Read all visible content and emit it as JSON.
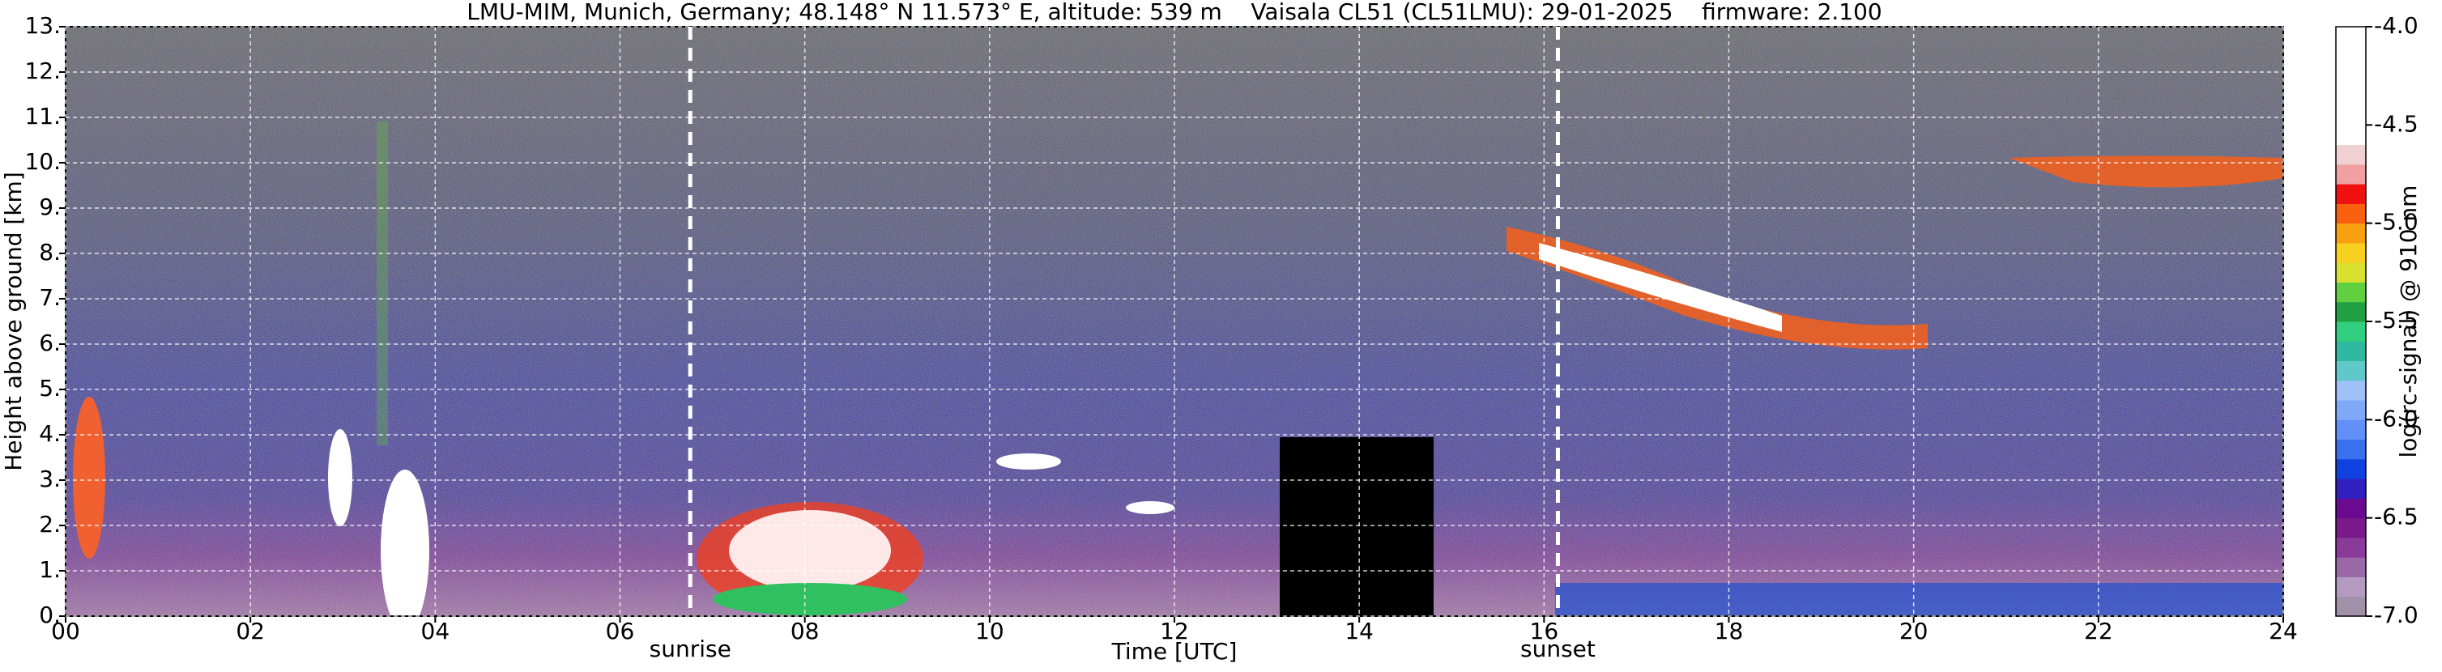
{
  "chart_data": {
    "type": "heatmap",
    "title": "LMU-MIM, Munich, Germany; 48.148° N 11.573° E, altitude: 539 m    Vaisala CL51 (CL51LMU): 29-01-2025    firmware: 2.100",
    "x_label": "Time [UTC]",
    "y_label": "Height above ground [km]",
    "xlim": [
      0,
      24
    ],
    "xticks": [
      {
        "value": 0,
        "label": "00"
      },
      {
        "value": 2,
        "label": "02"
      },
      {
        "value": 4,
        "label": "04"
      },
      {
        "value": 6,
        "label": "06"
      },
      {
        "value": 8,
        "label": "08"
      },
      {
        "value": 10,
        "label": "10"
      },
      {
        "value": 12,
        "label": "12"
      },
      {
        "value": 14,
        "label": "14"
      },
      {
        "value": 16,
        "label": "16"
      },
      {
        "value": 18,
        "label": "18"
      },
      {
        "value": 20,
        "label": "20"
      },
      {
        "value": 22,
        "label": "22"
      },
      {
        "value": 24,
        "label": "24"
      }
    ],
    "ylim": [
      0,
      13
    ],
    "yticks": [
      {
        "value": 0,
        "label": "0."
      },
      {
        "value": 1,
        "label": "1."
      },
      {
        "value": 2,
        "label": "2."
      },
      {
        "value": 3,
        "label": "3."
      },
      {
        "value": 4,
        "label": "4."
      },
      {
        "value": 5,
        "label": "5."
      },
      {
        "value": 6,
        "label": "6."
      },
      {
        "value": 7,
        "label": "7."
      },
      {
        "value": 8,
        "label": "8."
      },
      {
        "value": 9,
        "label": "9."
      },
      {
        "value": 10,
        "label": "10."
      },
      {
        "value": 11,
        "label": "11."
      },
      {
        "value": 12,
        "label": "12."
      },
      {
        "value": 13,
        "label": "13."
      }
    ],
    "grid": true,
    "annotations": [
      {
        "text": "sunrise",
        "x": 6.76
      },
      {
        "text": "sunset",
        "x": 16.15
      }
    ],
    "colorbar": {
      "label": "log(rc-signal) @ 910 nm",
      "lim": [
        -7.0,
        -4.0
      ],
      "ticks": [
        {
          "value": -7,
          "label": "-7.0"
        },
        {
          "value": -6.5,
          "label": "-6.5"
        },
        {
          "value": -6,
          "label": "-6.0"
        },
        {
          "value": -5.5,
          "label": "-5.5"
        },
        {
          "value": -5,
          "label": "-5.0"
        },
        {
          "value": -4.5,
          "label": "-4.5"
        },
        {
          "value": -4,
          "label": "-4.0"
        }
      ],
      "colors": [
        "#a090a8",
        "#b49ac0",
        "#9a6aa8",
        "#8a3a98",
        "#7a1a8a",
        "#6a0a90",
        "#3020c0",
        "#1040e0",
        "#3a70f0",
        "#6090f8",
        "#80a8f8",
        "#a0c0f8",
        "#60c8c8",
        "#30b8a0",
        "#30d080",
        "#20a040",
        "#60d040",
        "#d8e030",
        "#f8d020",
        "#f8a010",
        "#f86010",
        "#f01010",
        "#f0a0a0",
        "#f0d0d0",
        "#ffffff",
        "#ffffff",
        "#ffffff",
        "#ffffff",
        "#ffffff",
        "#ffffff"
      ]
    }
  }
}
